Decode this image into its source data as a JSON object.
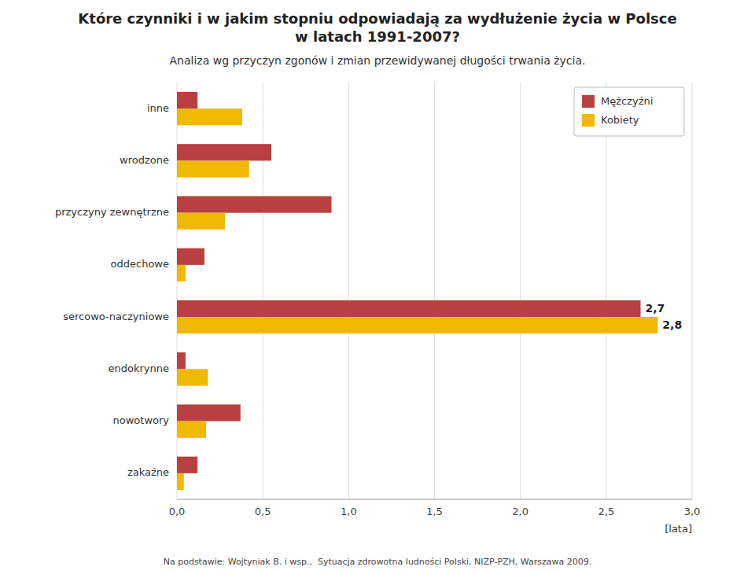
{
  "chart_data": {
    "type": "bar",
    "orientation": "horizontal",
    "title": "Które czynniki i w jakim stopniu odpowiadają za wydłużenie życia w Polsce\nw latach 1991-2007?",
    "subtitle": "Analiza wg przyczyn zgonów i zmian przewidywanej długości trwania życia.",
    "categories": [
      "inne",
      "wrodzone",
      "przyczyny zewnętrzne",
      "oddechowe",
      "sercowo-naczyniowe",
      "endokrynne",
      "nowotwory",
      "zakaźne"
    ],
    "series": [
      {
        "name": "Mężczyźni",
        "color": "#b94040",
        "values": [
          0.12,
          0.55,
          0.9,
          0.16,
          2.7,
          0.05,
          0.37,
          0.12
        ],
        "value_labels": [
          null,
          null,
          null,
          null,
          "2,7",
          null,
          null,
          null
        ]
      },
      {
        "name": "Kobiety",
        "color": "#f0b800",
        "values": [
          0.38,
          0.42,
          0.28,
          0.05,
          2.8,
          0.18,
          0.17,
          0.04
        ],
        "value_labels": [
          null,
          null,
          null,
          null,
          "2,8",
          null,
          null,
          null
        ]
      }
    ],
    "x_label": "[lata]",
    "xlim": [
      0,
      3.0
    ],
    "xticks": [
      {
        "value": 0.0,
        "label": "0,0"
      },
      {
        "value": 0.5,
        "label": "0,5"
      },
      {
        "value": 1.0,
        "label": "1,0"
      },
      {
        "value": 1.5,
        "label": "1,5"
      },
      {
        "value": 2.0,
        "label": "2,0"
      },
      {
        "value": 2.5,
        "label": "2,5"
      },
      {
        "value": 3.0,
        "label": "3,0"
      }
    ],
    "grid": true,
    "legend": "upper right",
    "footnote": "Na podstawie: Wojtyniak B. i wsp.,  Sytuacja zdrowotna ludności Polski, NIZP-PZH, Warszawa 2009."
  }
}
